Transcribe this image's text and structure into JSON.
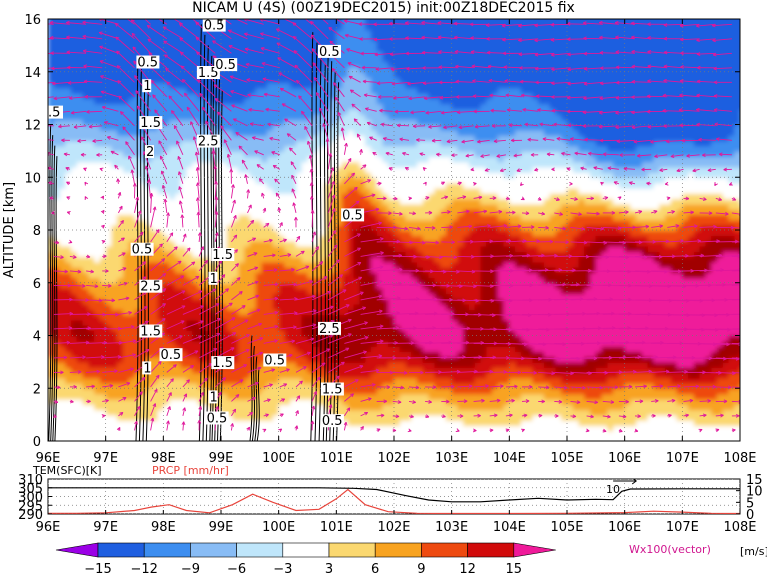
{
  "title": "NICAM U (4S) (00Z19DEC2015) init:00Z18DEC2015 fix",
  "colors": {
    "fill_levels": [
      "#9b00e6",
      "#1f5fe0",
      "#3d8ef0",
      "#88bcf5",
      "#bfe6fb",
      "#ffffff",
      "#fbd870",
      "#f8a320",
      "#ee4a10",
      "#d10a0a",
      "#a10000",
      "#ef1a9a"
    ],
    "vector": "#e0179b",
    "prcp": "#e8453c",
    "tem": "#000000"
  },
  "chart_data": [
    {
      "type": "heatmap",
      "title": "NICAM U (4S) (00Z19DEC2015) init:00Z18DEC2015 fix",
      "ylabel": "ALTITUDE [km]",
      "xlim": [
        96,
        108
      ],
      "ylim": [
        0,
        16
      ],
      "x_ticks": [
        "96E",
        "97E",
        "98E",
        "99E",
        "100E",
        "101E",
        "102E",
        "103E",
        "104E",
        "105E",
        "106E",
        "107E",
        "108E"
      ],
      "y_ticks": [
        "0",
        "2",
        "4",
        "6",
        "8",
        "10",
        "12",
        "14",
        "16"
      ],
      "grid": true,
      "colorbar": {
        "levels": [
          "-15",
          "-12",
          "-9",
          "-6",
          "-3",
          "3",
          "6",
          "9",
          "12",
          "15"
        ],
        "unit": "[m/s]"
      },
      "vector_label": "Wx100(vector)",
      "contour_labels": [
        {
          "text": "0.5",
          "x": 97.55,
          "y": 14.2
        },
        {
          "text": "1",
          "x": 97.65,
          "y": 13.3
        },
        {
          "text": "1.5",
          "x": 97.6,
          "y": 11.9
        },
        {
          "text": "2",
          "x": 97.7,
          "y": 10.8
        },
        {
          "text": ".5",
          "x": 96.0,
          "y": 12.3
        },
        {
          "text": "0.5",
          "x": 97.45,
          "y": 7.1
        },
        {
          "text": "2.5",
          "x": 97.6,
          "y": 5.7
        },
        {
          "text": "1.5",
          "x": 97.6,
          "y": 4.0
        },
        {
          "text": "0.5",
          "x": 97.95,
          "y": 3.1
        },
        {
          "text": "1",
          "x": 97.65,
          "y": 2.6
        },
        {
          "text": "0.5",
          "x": 98.7,
          "y": 15.6
        },
        {
          "text": "1.5",
          "x": 98.6,
          "y": 13.8
        },
        {
          "text": "0.5",
          "x": 98.9,
          "y": 14.1
        },
        {
          "text": "2.5",
          "x": 98.6,
          "y": 11.2
        },
        {
          "text": "1.5",
          "x": 98.85,
          "y": 6.9
        },
        {
          "text": "1",
          "x": 98.8,
          "y": 6.0
        },
        {
          "text": "1.5",
          "x": 98.85,
          "y": 2.8
        },
        {
          "text": "1",
          "x": 98.8,
          "y": 1.5
        },
        {
          "text": "0.5",
          "x": 98.75,
          "y": 0.7
        },
        {
          "text": "0.5",
          "x": 99.75,
          "y": 2.9
        },
        {
          "text": "0.5",
          "x": 100.7,
          "y": 14.6
        },
        {
          "text": "2.5",
          "x": 100.7,
          "y": 4.1
        },
        {
          "text": "1.5",
          "x": 100.75,
          "y": 1.8
        },
        {
          "text": "0.5",
          "x": 100.75,
          "y": 0.6
        },
        {
          "text": "0.5",
          "x": 101.1,
          "y": 8.4
        }
      ]
    },
    {
      "type": "line",
      "x_ticks": [
        "96E",
        "97E",
        "98E",
        "99E",
        "100E",
        "101E",
        "102E",
        "103E",
        "104E",
        "105E",
        "106E",
        "107E",
        "108E"
      ],
      "xlim": [
        96,
        108
      ],
      "left_axis": {
        "label": "TEM(SFC)[K]",
        "ticks": [
          "290",
          "295",
          "300",
          "305",
          "310"
        ],
        "range": [
          290,
          310
        ]
      },
      "right_axis": {
        "label": "PRCP [mm/hr]",
        "ticks": [
          "0",
          "5",
          "10",
          "15"
        ],
        "range": [
          0,
          15
        ]
      },
      "annotation": "10",
      "series": [
        {
          "name": "TEM(SFC)[K]",
          "axis": "left",
          "x": [
            96,
            97,
            98,
            99,
            100,
            100.7,
            101.3,
            101.7,
            102.2,
            102.6,
            103,
            103.5,
            104,
            104.5,
            105,
            105.5,
            105.8,
            105.95,
            106.1,
            107,
            108
          ],
          "values": [
            305,
            305,
            305,
            305,
            305,
            305,
            304.7,
            304,
            300.5,
            298,
            297,
            297,
            298,
            299,
            298,
            298.4,
            298.2,
            303,
            304.3,
            304.4,
            304.4
          ]
        },
        {
          "name": "PRCP [mm/hr]",
          "axis": "right",
          "x": [
            96,
            96.5,
            97,
            97.5,
            97.8,
            98.1,
            98.4,
            98.8,
            99.2,
            99.55,
            99.9,
            100.3,
            100.7,
            101.0,
            101.2,
            101.5,
            101.9,
            102.4,
            103,
            104,
            105,
            106,
            106.5,
            107,
            107.5,
            108
          ],
          "values": [
            0.3,
            0.3,
            0.5,
            1.5,
            3.0,
            4.0,
            1.5,
            0.5,
            4.0,
            8.5,
            5.0,
            1.5,
            2.0,
            6.5,
            10.5,
            4.0,
            1.0,
            0.3,
            0.2,
            0.2,
            0.3,
            0.6,
            1.2,
            0.8,
            0.3,
            0.2
          ]
        }
      ]
    }
  ]
}
